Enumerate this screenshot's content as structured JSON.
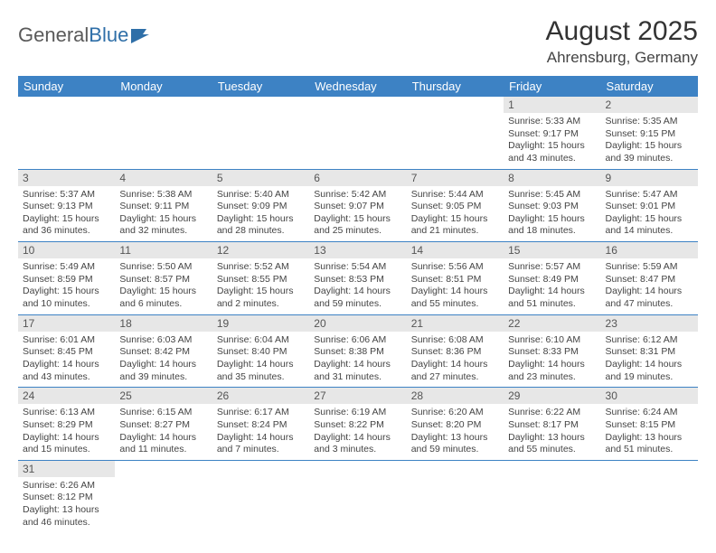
{
  "logo": {
    "text1": "General",
    "text2": "Blue"
  },
  "title": "August 2025",
  "location": "Ahrensburg, Germany",
  "colors": {
    "header_bg": "#3d82c4",
    "header_text": "#ffffff",
    "daynum_bg": "#e7e7e7",
    "row_border": "#3d82c4",
    "logo_blue": "#2f6fa8"
  },
  "weekdays": [
    "Sunday",
    "Monday",
    "Tuesday",
    "Wednesday",
    "Thursday",
    "Friday",
    "Saturday"
  ],
  "weeks": [
    [
      null,
      null,
      null,
      null,
      null,
      {
        "n": "1",
        "sr": "Sunrise: 5:33 AM",
        "ss": "Sunset: 9:17 PM",
        "dl": "Daylight: 15 hours and 43 minutes."
      },
      {
        "n": "2",
        "sr": "Sunrise: 5:35 AM",
        "ss": "Sunset: 9:15 PM",
        "dl": "Daylight: 15 hours and 39 minutes."
      }
    ],
    [
      {
        "n": "3",
        "sr": "Sunrise: 5:37 AM",
        "ss": "Sunset: 9:13 PM",
        "dl": "Daylight: 15 hours and 36 minutes."
      },
      {
        "n": "4",
        "sr": "Sunrise: 5:38 AM",
        "ss": "Sunset: 9:11 PM",
        "dl": "Daylight: 15 hours and 32 minutes."
      },
      {
        "n": "5",
        "sr": "Sunrise: 5:40 AM",
        "ss": "Sunset: 9:09 PM",
        "dl": "Daylight: 15 hours and 28 minutes."
      },
      {
        "n": "6",
        "sr": "Sunrise: 5:42 AM",
        "ss": "Sunset: 9:07 PM",
        "dl": "Daylight: 15 hours and 25 minutes."
      },
      {
        "n": "7",
        "sr": "Sunrise: 5:44 AM",
        "ss": "Sunset: 9:05 PM",
        "dl": "Daylight: 15 hours and 21 minutes."
      },
      {
        "n": "8",
        "sr": "Sunrise: 5:45 AM",
        "ss": "Sunset: 9:03 PM",
        "dl": "Daylight: 15 hours and 18 minutes."
      },
      {
        "n": "9",
        "sr": "Sunrise: 5:47 AM",
        "ss": "Sunset: 9:01 PM",
        "dl": "Daylight: 15 hours and 14 minutes."
      }
    ],
    [
      {
        "n": "10",
        "sr": "Sunrise: 5:49 AM",
        "ss": "Sunset: 8:59 PM",
        "dl": "Daylight: 15 hours and 10 minutes."
      },
      {
        "n": "11",
        "sr": "Sunrise: 5:50 AM",
        "ss": "Sunset: 8:57 PM",
        "dl": "Daylight: 15 hours and 6 minutes."
      },
      {
        "n": "12",
        "sr": "Sunrise: 5:52 AM",
        "ss": "Sunset: 8:55 PM",
        "dl": "Daylight: 15 hours and 2 minutes."
      },
      {
        "n": "13",
        "sr": "Sunrise: 5:54 AM",
        "ss": "Sunset: 8:53 PM",
        "dl": "Daylight: 14 hours and 59 minutes."
      },
      {
        "n": "14",
        "sr": "Sunrise: 5:56 AM",
        "ss": "Sunset: 8:51 PM",
        "dl": "Daylight: 14 hours and 55 minutes."
      },
      {
        "n": "15",
        "sr": "Sunrise: 5:57 AM",
        "ss": "Sunset: 8:49 PM",
        "dl": "Daylight: 14 hours and 51 minutes."
      },
      {
        "n": "16",
        "sr": "Sunrise: 5:59 AM",
        "ss": "Sunset: 8:47 PM",
        "dl": "Daylight: 14 hours and 47 minutes."
      }
    ],
    [
      {
        "n": "17",
        "sr": "Sunrise: 6:01 AM",
        "ss": "Sunset: 8:45 PM",
        "dl": "Daylight: 14 hours and 43 minutes."
      },
      {
        "n": "18",
        "sr": "Sunrise: 6:03 AM",
        "ss": "Sunset: 8:42 PM",
        "dl": "Daylight: 14 hours and 39 minutes."
      },
      {
        "n": "19",
        "sr": "Sunrise: 6:04 AM",
        "ss": "Sunset: 8:40 PM",
        "dl": "Daylight: 14 hours and 35 minutes."
      },
      {
        "n": "20",
        "sr": "Sunrise: 6:06 AM",
        "ss": "Sunset: 8:38 PM",
        "dl": "Daylight: 14 hours and 31 minutes."
      },
      {
        "n": "21",
        "sr": "Sunrise: 6:08 AM",
        "ss": "Sunset: 8:36 PM",
        "dl": "Daylight: 14 hours and 27 minutes."
      },
      {
        "n": "22",
        "sr": "Sunrise: 6:10 AM",
        "ss": "Sunset: 8:33 PM",
        "dl": "Daylight: 14 hours and 23 minutes."
      },
      {
        "n": "23",
        "sr": "Sunrise: 6:12 AM",
        "ss": "Sunset: 8:31 PM",
        "dl": "Daylight: 14 hours and 19 minutes."
      }
    ],
    [
      {
        "n": "24",
        "sr": "Sunrise: 6:13 AM",
        "ss": "Sunset: 8:29 PM",
        "dl": "Daylight: 14 hours and 15 minutes."
      },
      {
        "n": "25",
        "sr": "Sunrise: 6:15 AM",
        "ss": "Sunset: 8:27 PM",
        "dl": "Daylight: 14 hours and 11 minutes."
      },
      {
        "n": "26",
        "sr": "Sunrise: 6:17 AM",
        "ss": "Sunset: 8:24 PM",
        "dl": "Daylight: 14 hours and 7 minutes."
      },
      {
        "n": "27",
        "sr": "Sunrise: 6:19 AM",
        "ss": "Sunset: 8:22 PM",
        "dl": "Daylight: 14 hours and 3 minutes."
      },
      {
        "n": "28",
        "sr": "Sunrise: 6:20 AM",
        "ss": "Sunset: 8:20 PM",
        "dl": "Daylight: 13 hours and 59 minutes."
      },
      {
        "n": "29",
        "sr": "Sunrise: 6:22 AM",
        "ss": "Sunset: 8:17 PM",
        "dl": "Daylight: 13 hours and 55 minutes."
      },
      {
        "n": "30",
        "sr": "Sunrise: 6:24 AM",
        "ss": "Sunset: 8:15 PM",
        "dl": "Daylight: 13 hours and 51 minutes."
      }
    ],
    [
      {
        "n": "31",
        "sr": "Sunrise: 6:26 AM",
        "ss": "Sunset: 8:12 PM",
        "dl": "Daylight: 13 hours and 46 minutes."
      },
      null,
      null,
      null,
      null,
      null,
      null
    ]
  ]
}
